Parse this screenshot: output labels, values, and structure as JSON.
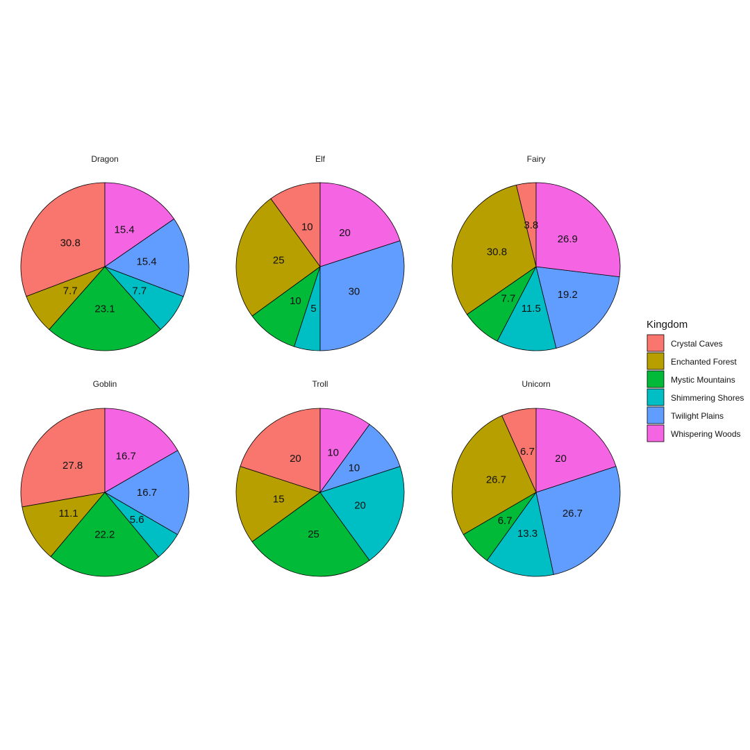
{
  "chart_data": {
    "type": "pie",
    "legend": {
      "title": "Kingdom",
      "position": "right",
      "entries": [
        {
          "name": "Crystal Caves",
          "color": "#F8766D"
        },
        {
          "name": "Enchanted Forest",
          "color": "#B79F00"
        },
        {
          "name": "Mystic Mountains",
          "color": "#00BA38"
        },
        {
          "name": "Shimmering Shores",
          "color": "#00BFC4"
        },
        {
          "name": "Twilight Plains",
          "color": "#619CFF"
        },
        {
          "name": "Whispering Woods",
          "color": "#F564E3"
        }
      ]
    },
    "facets": [
      {
        "title": "Dragon",
        "slices": [
          {
            "category": "Crystal Caves",
            "value": 30.8
          },
          {
            "category": "Enchanted Forest",
            "value": 7.7
          },
          {
            "category": "Mystic Mountains",
            "value": 23.1
          },
          {
            "category": "Shimmering Shores",
            "value": 7.7
          },
          {
            "category": "Twilight Plains",
            "value": 15.4
          },
          {
            "category": "Whispering Woods",
            "value": 15.4
          }
        ]
      },
      {
        "title": "Elf",
        "slices": [
          {
            "category": "Crystal Caves",
            "value": 10
          },
          {
            "category": "Enchanted Forest",
            "value": 25
          },
          {
            "category": "Mystic Mountains",
            "value": 10
          },
          {
            "category": "Shimmering Shores",
            "value": 5
          },
          {
            "category": "Twilight Plains",
            "value": 30
          },
          {
            "category": "Whispering Woods",
            "value": 20
          }
        ]
      },
      {
        "title": "Fairy",
        "slices": [
          {
            "category": "Crystal Caves",
            "value": 3.8
          },
          {
            "category": "Enchanted Forest",
            "value": 30.8
          },
          {
            "category": "Mystic Mountains",
            "value": 7.7
          },
          {
            "category": "Shimmering Shores",
            "value": 11.5
          },
          {
            "category": "Twilight Plains",
            "value": 19.2
          },
          {
            "category": "Whispering Woods",
            "value": 26.9
          }
        ]
      },
      {
        "title": "Goblin",
        "slices": [
          {
            "category": "Crystal Caves",
            "value": 27.8
          },
          {
            "category": "Enchanted Forest",
            "value": 11.1
          },
          {
            "category": "Mystic Mountains",
            "value": 22.2
          },
          {
            "category": "Shimmering Shores",
            "value": 5.6
          },
          {
            "category": "Twilight Plains",
            "value": 16.7
          },
          {
            "category": "Whispering Woods",
            "value": 16.7
          }
        ]
      },
      {
        "title": "Troll",
        "slices": [
          {
            "category": "Crystal Caves",
            "value": 20
          },
          {
            "category": "Enchanted Forest",
            "value": 15
          },
          {
            "category": "Mystic Mountains",
            "value": 25
          },
          {
            "category": "Shimmering Shores",
            "value": 20
          },
          {
            "category": "Twilight Plains",
            "value": 10
          },
          {
            "category": "Whispering Woods",
            "value": 10
          }
        ]
      },
      {
        "title": "Unicorn",
        "slices": [
          {
            "category": "Crystal Caves",
            "value": 6.7
          },
          {
            "category": "Enchanted Forest",
            "value": 26.7
          },
          {
            "category": "Mystic Mountains",
            "value": 6.7
          },
          {
            "category": "Shimmering Shores",
            "value": 13.3
          },
          {
            "category": "Twilight Plains",
            "value": 26.7
          },
          {
            "category": "Whispering Woods",
            "value": 20
          }
        ]
      }
    ]
  }
}
